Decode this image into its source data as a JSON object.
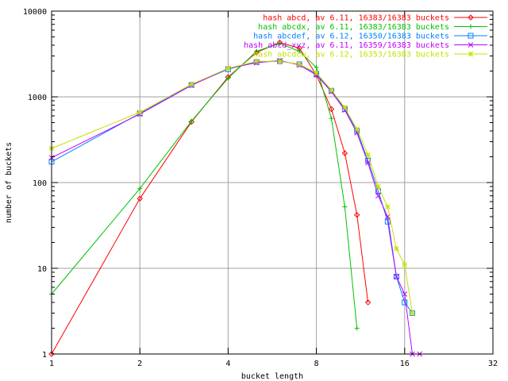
{
  "chart_data": {
    "type": "line",
    "title": "",
    "xlabel": "bucket length",
    "ylabel": "number of buckets",
    "xscale": "log2",
    "yscale": "log10",
    "xlim": [
      1,
      32
    ],
    "ylim": [
      1,
      10000
    ],
    "x_ticks": [
      1,
      2,
      4,
      8,
      16,
      32
    ],
    "x_tick_labels": [
      "1",
      "2",
      "4",
      "8",
      "16",
      "32"
    ],
    "y_ticks": [
      1,
      10,
      100,
      1000,
      10000
    ],
    "y_tick_labels": [
      "1",
      "10",
      "100",
      "1000",
      "10000"
    ],
    "grid": true,
    "legend_position": "top-right",
    "series": [
      {
        "name": "hash abcd, av 6.11, 16383/16383 buckets",
        "color": "#ff0000",
        "marker": "diamond",
        "points": [
          [
            1,
            1
          ],
          [
            2,
            65
          ],
          [
            3,
            510
          ],
          [
            4,
            1700
          ],
          [
            5,
            3300
          ],
          [
            6,
            4300
          ],
          [
            7,
            3700
          ],
          [
            8,
            1800
          ],
          [
            9,
            720
          ],
          [
            10,
            220
          ],
          [
            11,
            42
          ],
          [
            12,
            4
          ]
        ]
      },
      {
        "name": "hash abcdx, av 6.11, 16383/16383 buckets",
        "color": "#00c000",
        "marker": "plus",
        "points": [
          [
            1,
            5
          ],
          [
            2,
            85
          ],
          [
            3,
            520
          ],
          [
            4,
            1650
          ],
          [
            5,
            3400
          ],
          [
            6,
            4200
          ],
          [
            7,
            3400
          ],
          [
            8,
            2200
          ],
          [
            9,
            560
          ],
          [
            10,
            52
          ],
          [
            11,
            2
          ]
        ]
      },
      {
        "name": "hash abcdef, av 6.12, 16350/16383 buckets",
        "color": "#0080ff",
        "marker": "square",
        "points": [
          [
            1,
            175
          ],
          [
            2,
            640
          ],
          [
            3,
            1380
          ],
          [
            4,
            2100
          ],
          [
            5,
            2550
          ],
          [
            6,
            2600
          ],
          [
            7,
            2400
          ],
          [
            8,
            1850
          ],
          [
            9,
            1180
          ],
          [
            10,
            720
          ],
          [
            11,
            400
          ],
          [
            12,
            180
          ],
          [
            13,
            80
          ],
          [
            14,
            35
          ],
          [
            15,
            8
          ],
          [
            16,
            4
          ],
          [
            17,
            3
          ]
        ]
      },
      {
        "name": "hash abcd_xyz, av 6.11, 16359/16383 buckets",
        "color": "#c000ff",
        "marker": "x",
        "points": [
          [
            1,
            195
          ],
          [
            2,
            630
          ],
          [
            3,
            1360
          ],
          [
            4,
            2150
          ],
          [
            5,
            2500
          ],
          [
            6,
            2650
          ],
          [
            7,
            2350
          ],
          [
            8,
            1800
          ],
          [
            9,
            1150
          ],
          [
            10,
            700
          ],
          [
            11,
            380
          ],
          [
            12,
            170
          ],
          [
            13,
            70
          ],
          [
            14,
            40
          ],
          [
            15,
            8
          ],
          [
            16,
            5
          ],
          [
            17,
            1
          ],
          [
            18,
            1
          ]
        ]
      },
      {
        "name": "hash abcdcw, av 6.12, 16353/16383 buckets",
        "color": "#c8e000",
        "marker": "star",
        "points": [
          [
            1,
            250
          ],
          [
            2,
            660
          ],
          [
            3,
            1400
          ],
          [
            4,
            2150
          ],
          [
            5,
            2600
          ],
          [
            6,
            2600
          ],
          [
            7,
            2400
          ],
          [
            8,
            1900
          ],
          [
            9,
            1200
          ],
          [
            10,
            750
          ],
          [
            11,
            420
          ],
          [
            12,
            210
          ],
          [
            13,
            90
          ],
          [
            14,
            52
          ],
          [
            15,
            17
          ],
          [
            16,
            11
          ],
          [
            17,
            3
          ]
        ]
      }
    ]
  }
}
